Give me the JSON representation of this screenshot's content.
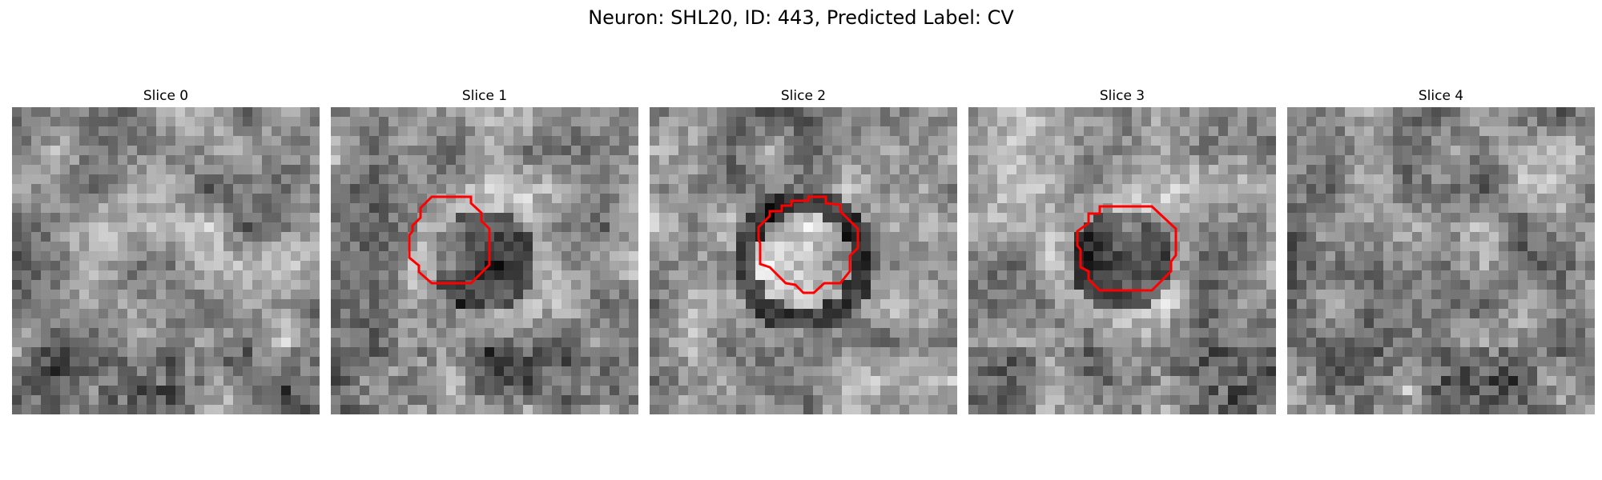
{
  "figure": {
    "title": "Neuron: SHL20, ID: 443, Predicted Label: CV"
  },
  "panels": [
    {
      "title": "Slice 0",
      "has_contour": false,
      "seed": 11
    },
    {
      "title": "Slice 1",
      "has_contour": true,
      "seed": 23,
      "interior": "dark"
    },
    {
      "title": "Slice 2",
      "has_contour": true,
      "seed": 37,
      "interior": "light"
    },
    {
      "title": "Slice 3",
      "has_contour": true,
      "seed": 51,
      "interior": "dark"
    },
    {
      "title": "Slice 4",
      "has_contour": false,
      "seed": 67
    }
  ],
  "colors": {
    "contour": "#ff0000",
    "background": "#ffffff"
  }
}
